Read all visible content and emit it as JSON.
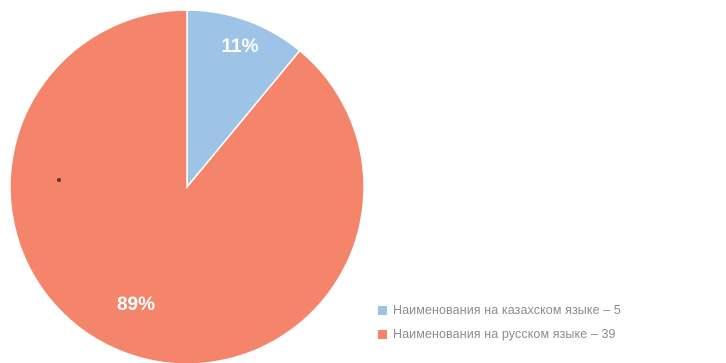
{
  "chart_data": {
    "type": "pie",
    "title": "",
    "slices": [
      {
        "label": "Наименования на казахском языке – 5",
        "value": 11,
        "display": "11%",
        "color": "#9dc3e6"
      },
      {
        "label": "Наименования на русском языке – 39",
        "value": 89,
        "display": "89%",
        "color": "#f4846a"
      }
    ],
    "legend_position": "bottom-right"
  }
}
